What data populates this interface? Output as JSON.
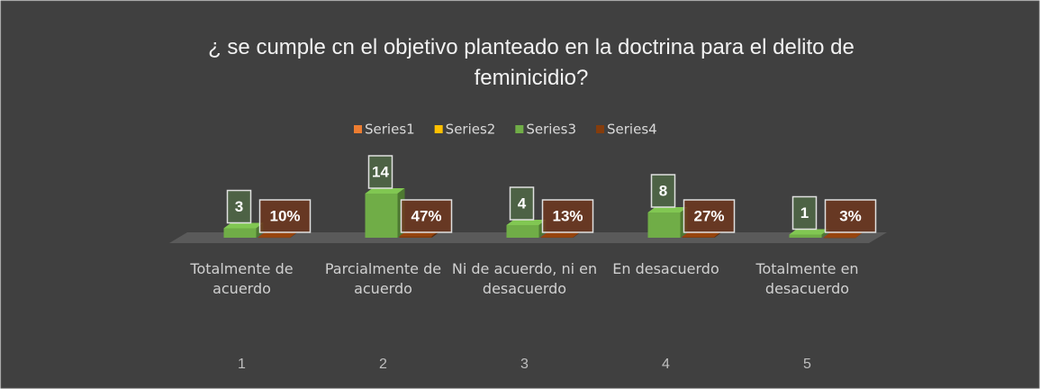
{
  "chart_data": {
    "type": "bar3d",
    "title": "¿ se cumple  cn el objetivo planteado en la doctrina para el delito de feminicidio?",
    "categories": [
      "Totalmente de acuerdo",
      "Parcialmente de acuerdo",
      "Ni de acuerdo, ni en desacuerdo",
      "En desacuerdo",
      "Totalmente en desacuerdo"
    ],
    "category_numbers": [
      1,
      2,
      3,
      4,
      5
    ],
    "series": [
      {
        "name": "Series1",
        "color": "#ed7d31",
        "values": [
          null,
          null,
          null,
          null,
          null
        ]
      },
      {
        "name": "Series2",
        "color": "#ffc000",
        "values": [
          null,
          null,
          null,
          null,
          null
        ]
      },
      {
        "name": "Series3",
        "color": "#70ad47",
        "values": [
          3,
          14,
          4,
          8,
          1
        ]
      },
      {
        "name": "Series4",
        "color": "#843c0c",
        "values": [
          0.1,
          0.47,
          0.13,
          0.27,
          0.03
        ],
        "value_labels": [
          "10%",
          "47%",
          "13%",
          "27%",
          "3%"
        ]
      }
    ],
    "legend": "top"
  }
}
